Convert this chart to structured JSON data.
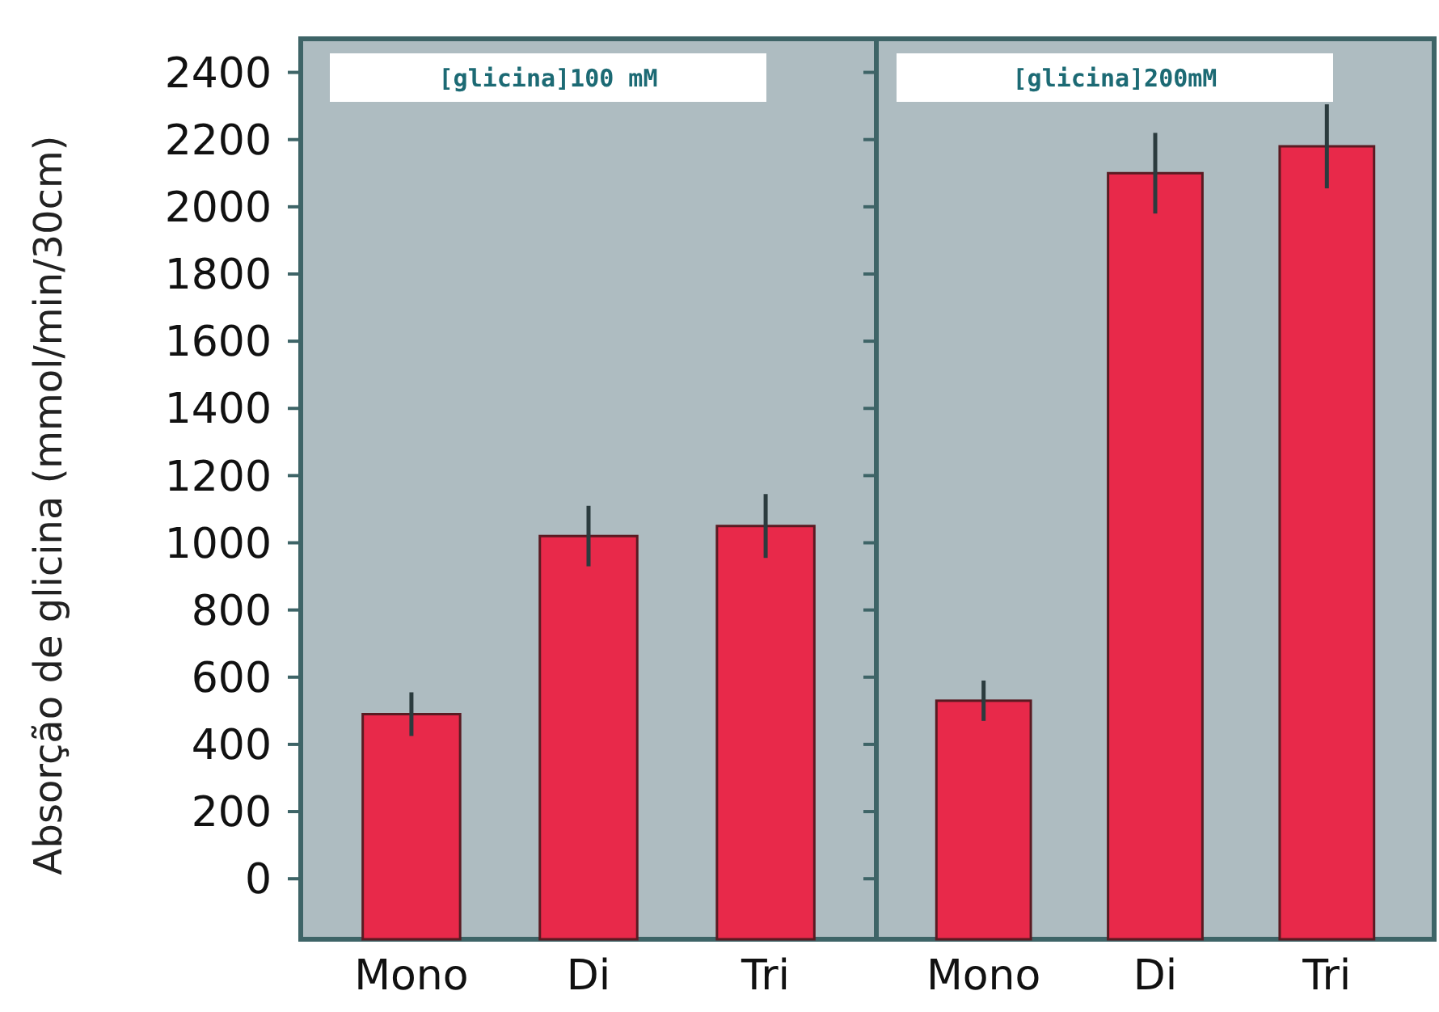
{
  "chart_data": [
    {
      "type": "bar",
      "title": "[glicina]100 mM",
      "ylabel": "Absorção de glicina (mmol/min/30cm)",
      "categories": [
        "Mono",
        "Di",
        "Tri"
      ],
      "values": [
        670,
        1200,
        1230
      ],
      "base": [
        -180,
        -180,
        -180
      ],
      "errors": [
        65,
        90,
        95
      ],
      "color": "#e8294a",
      "ylim": [
        -180,
        2500
      ],
      "yticks": [
        0,
        200,
        400,
        600,
        800,
        1000,
        1200,
        1400,
        1600,
        1800,
        2000,
        2200,
        2400
      ],
      "grid": false
    },
    {
      "type": "bar",
      "title": "[glicina]200mM",
      "categories": [
        "Mono",
        "Di",
        "Tri"
      ],
      "values": [
        710,
        2280,
        2360
      ],
      "base": [
        -180,
        -180,
        -180
      ],
      "errors": [
        60,
        120,
        125
      ],
      "color": "#e8294a",
      "ylim": [
        -180,
        2500
      ],
      "yticks": [
        0,
        200,
        400,
        600,
        800,
        1000,
        1200,
        1400,
        1600,
        1800,
        2000,
        2200,
        2400
      ],
      "tick_labels": "x",
      "grid": false
    }
  ]
}
